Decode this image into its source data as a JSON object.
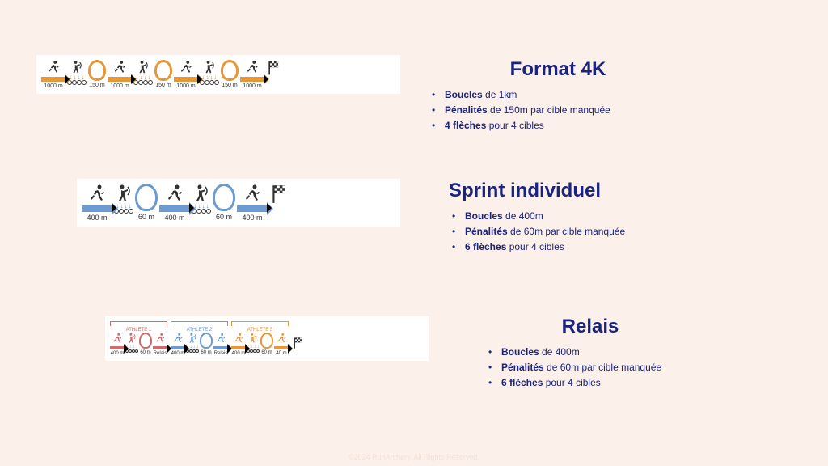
{
  "background_color": "#fcf0ea",
  "text_color": "#1a237e",
  "formats": [
    {
      "title": "Format 4K",
      "bullets": [
        {
          "bold": "Boucles",
          "rest": " de 1km"
        },
        {
          "bold": "Pénalités",
          "rest": " de 150m par cible manquée"
        },
        {
          "bold": "4 flèches",
          "rest": " pour 4 cibles"
        }
      ],
      "diagram": {
        "color": "#e8963a",
        "loop_color": "#e8963a",
        "segments": [
          "1000 m",
          "150 m",
          "1000 m",
          "150 m",
          "1000 m",
          "150 m",
          "1000 m"
        ],
        "pattern": [
          "run",
          "archer",
          "loop",
          "run",
          "archer",
          "loop",
          "run",
          "archer",
          "loop",
          "run",
          "flag"
        ]
      }
    },
    {
      "title": "Sprint individuel",
      "bullets": [
        {
          "bold": "Boucles",
          "rest": " de 400m"
        },
        {
          "bold": "Pénalités",
          "rest": " de 60m par cible manquée"
        },
        {
          "bold": "6 flèches",
          "rest": " pour 4 cibles"
        }
      ],
      "diagram": {
        "color": "#6b9bd1",
        "loop_color": "#6b9bd1",
        "segments": [
          "400 m",
          "60 m",
          "400 m",
          "60 m",
          "400 m"
        ],
        "pattern": [
          "run",
          "archer",
          "loop",
          "run",
          "archer",
          "loop",
          "run",
          "flag"
        ]
      }
    },
    {
      "title": "Relais",
      "bullets": [
        {
          "bold": "Boucles",
          "rest": " de 400m"
        },
        {
          "bold": "Pénalités",
          "rest": " de 60m par cible manquée"
        },
        {
          "bold": "6 flèches",
          "rest": " pour 4 cibles"
        }
      ],
      "athletes": [
        {
          "label": "ATHLETE 1",
          "color": "#d16b6b",
          "segs": [
            "400 m",
            "60 m",
            "Relais"
          ]
        },
        {
          "label": "ATHLETE 2",
          "color": "#6b9bd1",
          "segs": [
            "400 m",
            "60 m",
            "Relais"
          ]
        },
        {
          "label": "ATHLETE 3",
          "color": "#e8963a",
          "segs": [
            "400 m",
            "60 m",
            "40 m"
          ]
        }
      ]
    }
  ],
  "footer": "©2024 RunArchery. All Rights Reserved."
}
